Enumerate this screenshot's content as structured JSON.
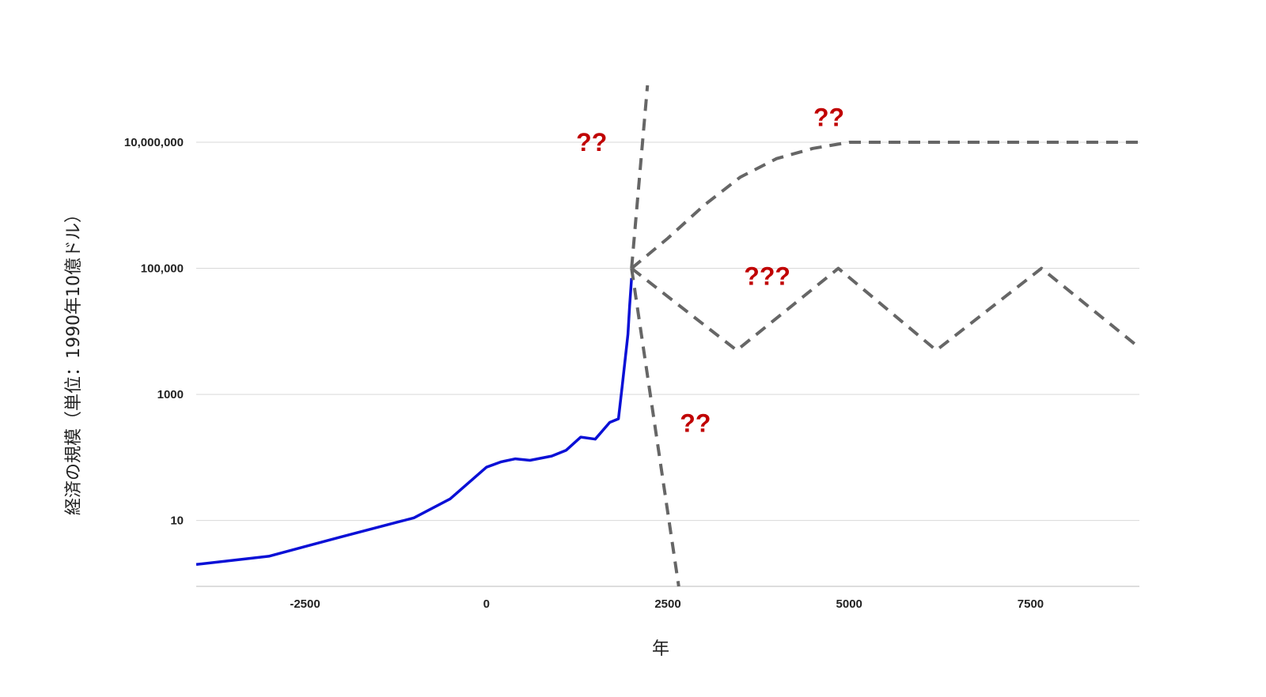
{
  "chart_data": {
    "type": "line",
    "title": "",
    "xlabel": "年",
    "ylabel": "経済の規模（単位：1990年10億ドル）",
    "y_scale": "log",
    "xlim": [
      -4000,
      9000
    ],
    "ylim": [
      0.9,
      80000000
    ],
    "grid": true,
    "x_ticks": [
      {
        "value": -2500,
        "label": "-2500"
      },
      {
        "value": 0,
        "label": "0"
      },
      {
        "value": 2500,
        "label": "2500"
      },
      {
        "value": 5000,
        "label": "5000"
      },
      {
        "value": 7500,
        "label": "7500"
      }
    ],
    "y_ticks": [
      {
        "value": 10,
        "label": "10"
      },
      {
        "value": 1000,
        "label": "1000"
      },
      {
        "value": 100000,
        "label": "100,000"
      },
      {
        "value": 10000000,
        "label": "10,000,000"
      }
    ],
    "series": [
      {
        "style": "solid",
        "color": "#0a10d6",
        "x": [
          -4000,
          -3000,
          -2000,
          -1000,
          -500,
          0,
          200,
          400,
          600,
          900,
          1100,
          1300,
          1500,
          1700,
          1820,
          1870,
          1913,
          1950,
          1973,
          2000
        ],
        "y": [
          2,
          2.7,
          5.5,
          11,
          22,
          70,
          85,
          95,
          90,
          105,
          130,
          210,
          195,
          360,
          410,
          1300,
          3700,
          9000,
          25000,
          70000
        ]
      },
      {
        "style": "dashed",
        "color": "#666666",
        "x": [
          2000,
          2220
        ],
        "y": [
          100000,
          80000000
        ]
      },
      {
        "style": "dashed",
        "color": "#666666",
        "x": [
          2000,
          2500,
          3000,
          3500,
          4000,
          4500,
          5000,
          6000,
          7000,
          8000,
          9000
        ],
        "y": [
          100000,
          300000,
          1000000,
          2800000,
          5500000,
          8000000,
          10000000,
          10000000,
          10000000,
          10000000,
          10000000
        ]
      },
      {
        "style": "dashed",
        "color": "#666666",
        "x": [
          2000,
          3450,
          4850,
          6200,
          7650,
          9000
        ],
        "y": [
          100000,
          5000,
          100000,
          5000,
          100000,
          5500
        ]
      },
      {
        "style": "dashed",
        "color": "#666666",
        "x": [
          2000,
          2650
        ],
        "y": [
          100000,
          0.9
        ]
      }
    ],
    "annotations": [
      {
        "text": "??",
        "x": 1450,
        "y": 10000000,
        "color": "#c00000"
      },
      {
        "text": "??",
        "x": 4720,
        "y": 25000000,
        "color": "#c00000"
      },
      {
        "text": "???",
        "x": 3870,
        "y": 75000,
        "color": "#c00000"
      },
      {
        "text": "??",
        "x": 2880,
        "y": 350,
        "color": "#c00000"
      }
    ]
  }
}
